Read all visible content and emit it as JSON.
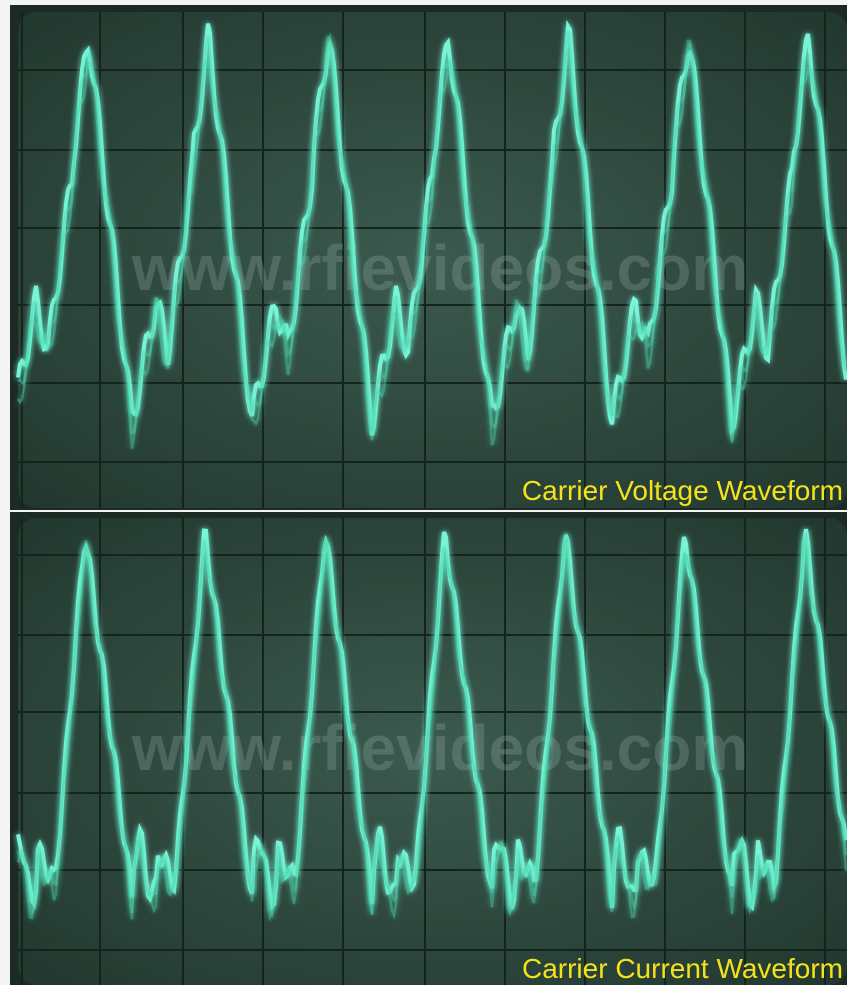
{
  "panels": [
    {
      "watermark": "www.rfievideos.com",
      "caption": "Carrier Voltage Waveform"
    },
    {
      "watermark": "www.rfievideos.com",
      "caption": "Carrier Current Waveform"
    }
  ]
}
